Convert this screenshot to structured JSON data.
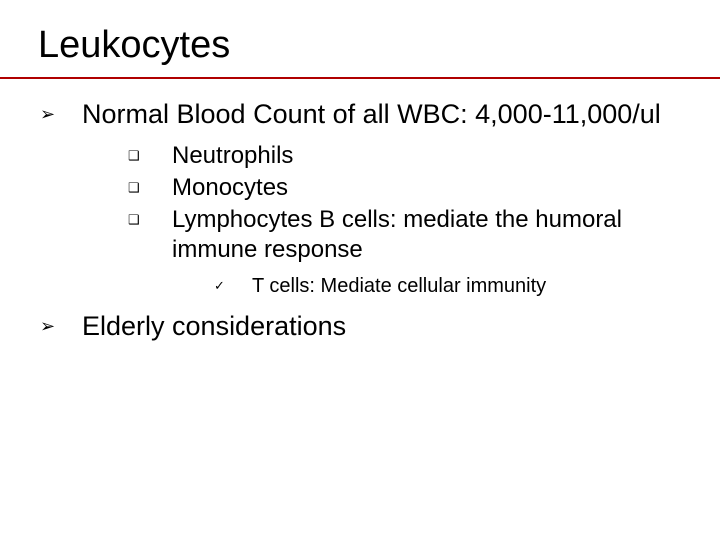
{
  "colors": {
    "rule": "#b00000",
    "text": "#000000",
    "background": "#ffffff"
  },
  "title": "Leukocytes",
  "bullets": {
    "lvl1_glyph": "➢",
    "lvl2_glyph": "❑",
    "lvl3_glyph": "✓"
  },
  "items": [
    {
      "text": "Normal Blood Count of all WBC: 4,000-11,000/ul",
      "sub": [
        {
          "text": "Neutrophils"
        },
        {
          "text": "Monocytes"
        },
        {
          "text": "Lymphocytes B cells: mediate the humoral immune response",
          "sub": [
            {
              "text": "T cells: Mediate cellular immunity"
            }
          ]
        }
      ]
    },
    {
      "text": "Elderly considerations"
    }
  ]
}
